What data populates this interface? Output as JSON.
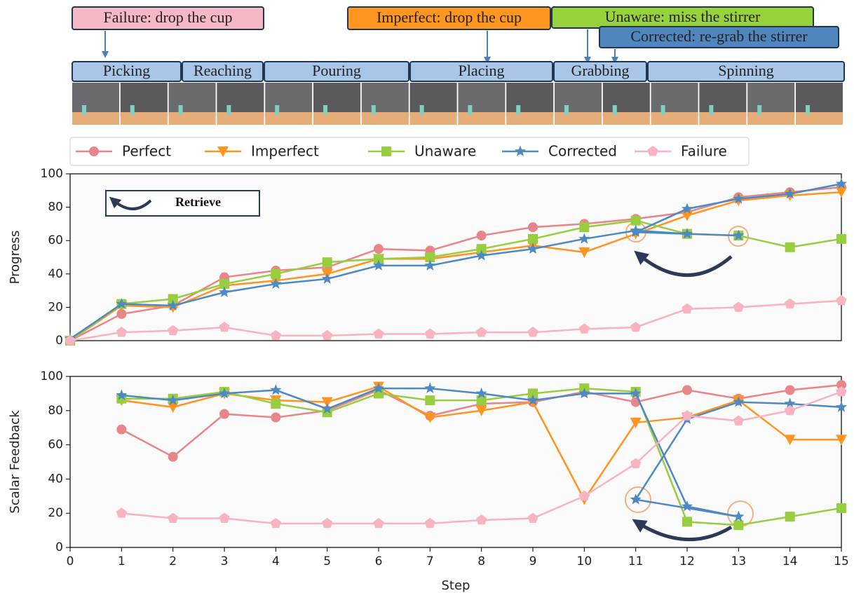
{
  "labels": [
    {
      "text": "Failure: drop the cup",
      "color": "#f6b8c4"
    },
    {
      "text": "Imperfect: drop the cup",
      "color": "#ff9620"
    },
    {
      "text": "Unaware: miss the stirrer",
      "color": "#97d23c"
    },
    {
      "text": "Corrected: re-grab the stirrer",
      "color": "#4f86bd"
    }
  ],
  "phases": [
    "Picking",
    "Reaching",
    "Pouring",
    "Placing",
    "Grabbing",
    "Spinning"
  ],
  "chart_data": [
    {
      "type": "line",
      "ylabel": "Progress",
      "annotation": "Retrieve",
      "legend": "top",
      "xlim": [
        0,
        15
      ],
      "ylim": [
        0,
        100
      ],
      "yticks": [
        0,
        20,
        40,
        60,
        80,
        100
      ],
      "series": [
        {
          "name": "Perfect",
          "color": "#e8858a",
          "marker": "circle",
          "x": [
            0,
            1,
            2,
            3,
            4,
            5,
            6,
            7,
            8,
            9,
            10,
            11,
            12,
            13,
            14,
            15
          ],
          "values": [
            0,
            16,
            21,
            38,
            42,
            44,
            55,
            54,
            63,
            68,
            70,
            73,
            77,
            86,
            89,
            92
          ]
        },
        {
          "name": "Imperfect",
          "color": "#ff9421",
          "marker": "triangle",
          "x": [
            0,
            1,
            2,
            3,
            4,
            5,
            6,
            7,
            8,
            9,
            10,
            11,
            12,
            13,
            14,
            15
          ],
          "values": [
            0,
            21,
            20,
            33,
            36,
            40,
            49,
            49,
            53,
            57,
            53,
            64,
            75,
            84,
            87,
            89
          ]
        },
        {
          "name": "Unaware",
          "color": "#98cd3f",
          "marker": "square",
          "x": [
            0,
            1,
            2,
            3,
            4,
            5,
            6,
            7,
            8,
            9,
            10,
            11,
            12,
            13,
            14,
            15
          ],
          "values": [
            0,
            22,
            25,
            34,
            40,
            47,
            49,
            50,
            55,
            61,
            68,
            72,
            64,
            63,
            56,
            61
          ]
        },
        {
          "name": "Corrected",
          "color": "#4d89c2",
          "marker": "star",
          "x": [
            0,
            1,
            2,
            3,
            4,
            5,
            6,
            7,
            8,
            9,
            10,
            11,
            12,
            13,
            11,
            12,
            13,
            14,
            15
          ],
          "values": [
            1,
            22,
            21,
            29,
            34,
            37,
            45,
            45,
            51,
            55,
            61,
            66,
            64,
            63,
            65,
            79,
            85,
            88,
            94
          ]
        },
        {
          "name": "Failure",
          "color": "#f7b3c2",
          "marker": "pentagon",
          "x": [
            0,
            1,
            2,
            3,
            4,
            5,
            6,
            7,
            8,
            9,
            10,
            11,
            12,
            13,
            14,
            15
          ],
          "values": [
            0,
            5,
            6,
            8,
            3,
            3,
            4,
            4,
            5,
            5,
            7,
            8,
            19,
            20,
            22,
            24
          ]
        }
      ]
    },
    {
      "type": "line",
      "ylabel": "Scalar Feedback",
      "xlabel": "Step",
      "xlim": [
        0,
        15
      ],
      "ylim": [
        0,
        100
      ],
      "yticks": [
        0,
        20,
        40,
        60,
        80,
        100
      ],
      "xticks": [
        0,
        1,
        2,
        3,
        4,
        5,
        6,
        7,
        8,
        9,
        10,
        11,
        12,
        13,
        14,
        15
      ],
      "series": [
        {
          "color": "#e8858a",
          "marker": "circle",
          "x": [
            1,
            2,
            3,
            4,
            5,
            6,
            7,
            8,
            9,
            10,
            11,
            12,
            13,
            14,
            15
          ],
          "values": [
            69,
            53,
            78,
            76,
            80,
            92,
            77,
            84,
            85,
            91,
            85,
            92,
            87,
            92,
            95
          ]
        },
        {
          "color": "#ff9421",
          "marker": "triangle",
          "x": [
            1,
            2,
            3,
            4,
            5,
            6,
            7,
            8,
            9,
            10,
            11,
            12,
            13,
            14,
            15
          ],
          "values": [
            86,
            82,
            90,
            86,
            85,
            94,
            76,
            80,
            85,
            28,
            73,
            76,
            86,
            63,
            63
          ]
        },
        {
          "color": "#98cd3f",
          "marker": "square",
          "x": [
            1,
            2,
            3,
            4,
            5,
            6,
            7,
            8,
            9,
            10,
            11,
            12,
            13,
            14,
            15
          ],
          "values": [
            87,
            87,
            91,
            84,
            79,
            90,
            86,
            86,
            90,
            93,
            91,
            15,
            13,
            18,
            23
          ]
        },
        {
          "color": "#4d89c2",
          "marker": "star",
          "x": [
            1,
            2,
            3,
            4,
            5,
            6,
            7,
            8,
            9,
            10,
            11,
            12,
            13,
            11,
            12,
            13,
            14,
            15
          ],
          "values": [
            89,
            86,
            90,
            92,
            81,
            93,
            93,
            90,
            86,
            90,
            90,
            24,
            18,
            28,
            75,
            85,
            84,
            82
          ]
        },
        {
          "color": "#f7b3c2",
          "marker": "pentagon",
          "x": [
            1,
            2,
            3,
            4,
            5,
            6,
            7,
            8,
            9,
            10,
            11,
            12,
            13,
            14,
            15
          ],
          "values": [
            20,
            17,
            17,
            14,
            14,
            14,
            14,
            16,
            17,
            30,
            49,
            77,
            74,
            80,
            91
          ]
        }
      ]
    }
  ]
}
